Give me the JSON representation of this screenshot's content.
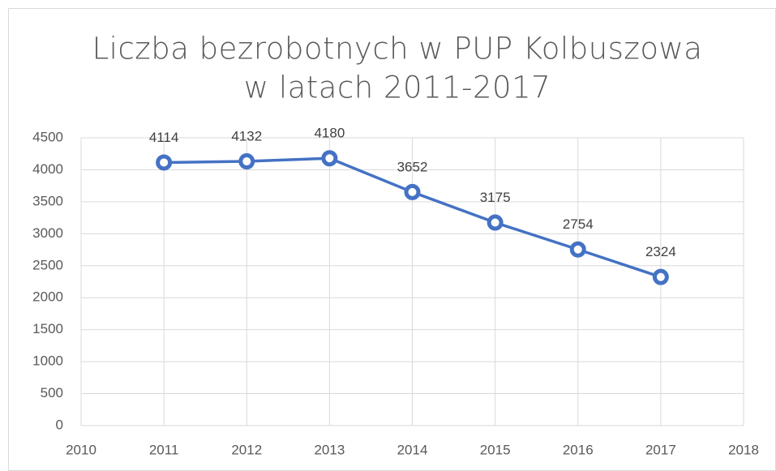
{
  "chart_data": {
    "type": "line",
    "title": [
      "Liczba bezrobotnych w PUP Kolbuszowa",
      "w latach 2011-2017"
    ],
    "x": [
      2011,
      2012,
      2013,
      2014,
      2015,
      2016,
      2017
    ],
    "values": [
      4114,
      4132,
      4180,
      3652,
      3175,
      2754,
      2324
    ],
    "color": "#4472c4",
    "xlim": [
      2010,
      2018
    ],
    "xticks": [
      2010,
      2011,
      2012,
      2013,
      2014,
      2015,
      2016,
      2017,
      2018
    ],
    "ylim": [
      0,
      4500
    ],
    "yticks": [
      0,
      500,
      1000,
      1500,
      2000,
      2500,
      3000,
      3500,
      4000,
      4500
    ],
    "grid": true
  }
}
